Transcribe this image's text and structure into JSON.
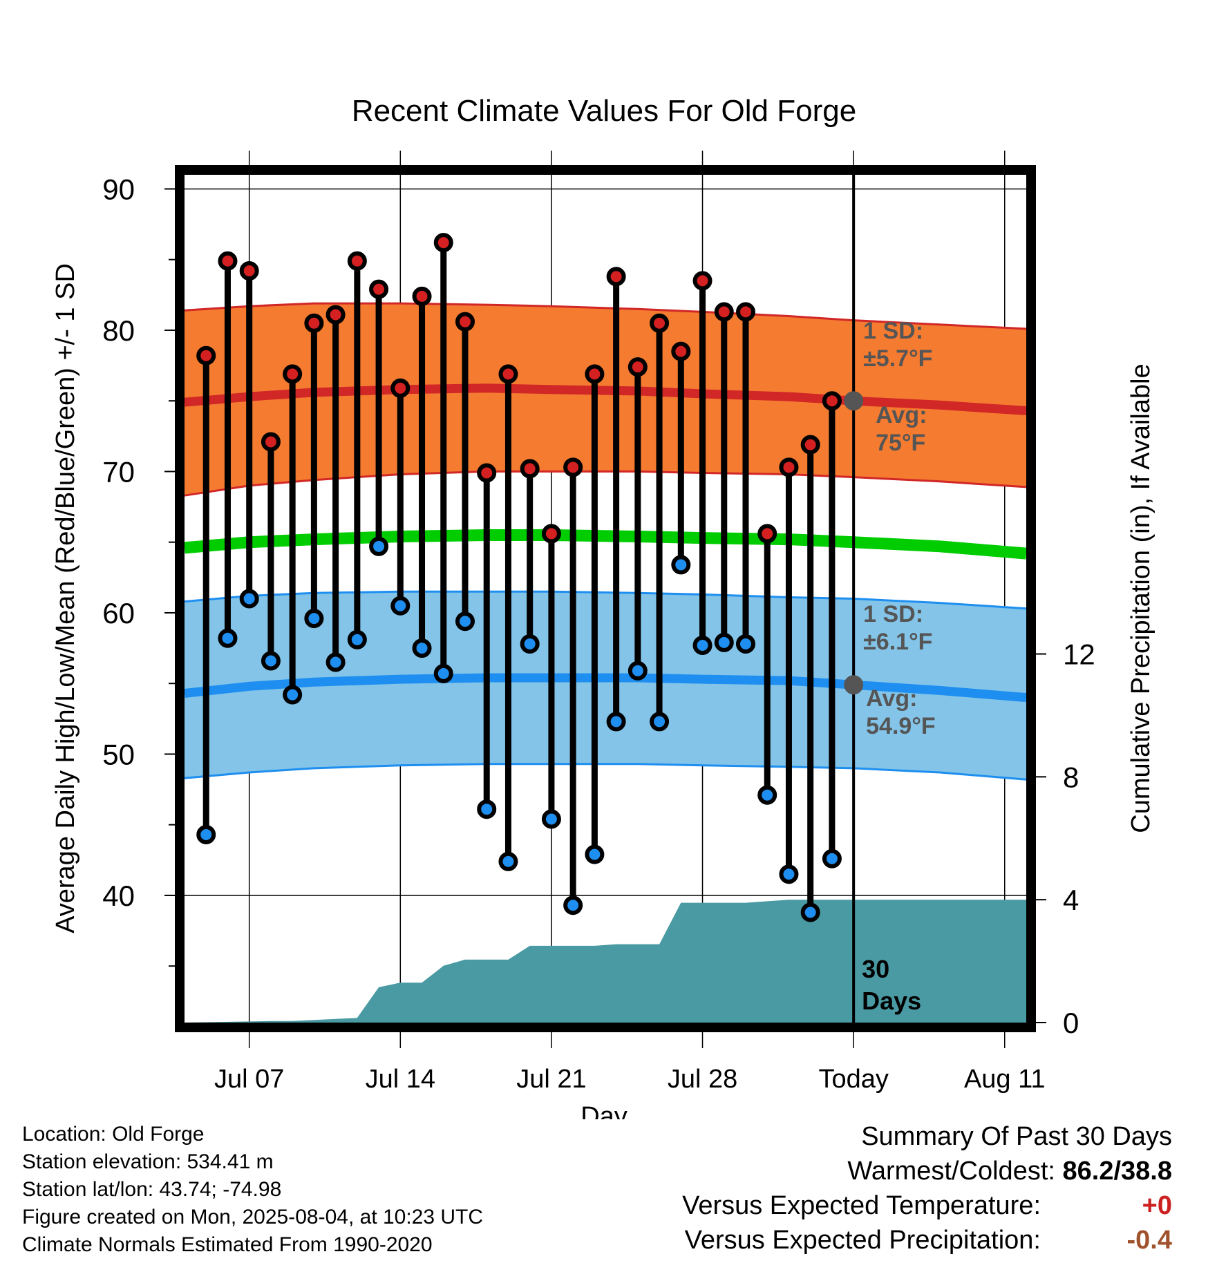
{
  "chart_data": {
    "type": "line",
    "title": "Recent Climate Values For Old Forge",
    "xlabel": "Day",
    "ylabel": "Average Daily High/Low/Mean (Red/Blue/Green) +/- 1 SD",
    "y2label": "Cumulative Precipitation (in), If Available",
    "x_ticks": [
      "Jul 07",
      "Jul 14",
      "Jul 21",
      "Jul 28",
      "Today",
      "Aug 11"
    ],
    "x_tick_days": [
      7,
      14,
      21,
      28,
      35,
      42
    ],
    "xlim_days": [
      4,
      43
    ],
    "ylim": [
      31,
      91
    ],
    "y_ticks": [
      40,
      50,
      60,
      70,
      80,
      90
    ],
    "y2lim": [
      0,
      27.6
    ],
    "y2_ticks": [
      0,
      4,
      8,
      12
    ],
    "today_day": 35,
    "today_label": [
      "30",
      "Days"
    ],
    "grid": true,
    "colors": {
      "high_band": "#f47b30",
      "high_line": "#d12727",
      "low_band": "#83c4e8",
      "low_line": "#1e8ff0",
      "mean_line": "#00cc00",
      "precip": "#4a9aa4",
      "high_marker": "#d42020",
      "low_marker": "#1e8ff0",
      "avg_marker": "#555555",
      "annotation": "#555555",
      "warm_value": "#cc2020",
      "precip_value": "#a0522d"
    },
    "normals": {
      "days": [
        4,
        7,
        10,
        14,
        18,
        21,
        25,
        28,
        32,
        35,
        39,
        43
      ],
      "high_avg": [
        74.9,
        75.3,
        75.6,
        75.8,
        75.9,
        75.8,
        75.7,
        75.5,
        75.3,
        75.0,
        74.7,
        74.3
      ],
      "high_upper": [
        81.4,
        81.7,
        81.9,
        81.9,
        81.8,
        81.7,
        81.5,
        81.3,
        81.0,
        80.7,
        80.4,
        80.1
      ],
      "high_lower": [
        68.3,
        69.0,
        69.4,
        69.8,
        70.0,
        70.0,
        70.0,
        69.9,
        69.8,
        69.6,
        69.3,
        68.9
      ],
      "mean": [
        64.6,
        65.0,
        65.2,
        65.4,
        65.5,
        65.5,
        65.4,
        65.3,
        65.2,
        65.0,
        64.7,
        64.2
      ],
      "low_avg": [
        54.3,
        54.8,
        55.1,
        55.3,
        55.4,
        55.4,
        55.4,
        55.3,
        55.2,
        54.9,
        54.5,
        54.0
      ],
      "low_upper": [
        60.8,
        61.2,
        61.4,
        61.5,
        61.5,
        61.5,
        61.4,
        61.3,
        61.1,
        61.0,
        60.7,
        60.3
      ],
      "low_lower": [
        48.3,
        48.7,
        49.0,
        49.2,
        49.3,
        49.3,
        49.3,
        49.2,
        49.1,
        49.0,
        48.7,
        48.2
      ]
    },
    "daily": {
      "days": [
        5,
        6,
        7,
        8,
        9,
        10,
        11,
        12,
        13,
        14,
        15,
        16,
        17,
        18,
        19,
        20,
        21,
        22,
        23,
        24,
        25,
        26,
        27,
        28,
        29,
        30,
        31,
        32,
        33,
        34
      ],
      "highs": [
        78.2,
        84.9,
        84.2,
        72.1,
        76.9,
        80.5,
        81.1,
        84.9,
        82.9,
        75.9,
        82.4,
        86.2,
        80.6,
        69.9,
        76.9,
        70.2,
        65.6,
        70.3,
        76.9,
        83.8,
        77.4,
        80.5,
        78.5,
        83.5,
        81.3,
        81.3,
        65.6,
        70.3,
        71.9,
        75.0
      ],
      "lows": [
        44.3,
        58.2,
        61.0,
        56.6,
        54.2,
        59.6,
        56.5,
        58.1,
        64.7,
        60.5,
        57.5,
        55.7,
        59.4,
        46.1,
        42.4,
        57.8,
        45.4,
        39.3,
        42.9,
        52.3,
        55.9,
        52.3,
        63.4,
        57.7,
        57.9,
        57.8,
        47.1,
        41.5,
        38.8,
        42.6
      ]
    },
    "precip": {
      "days": [
        4,
        8,
        9,
        12,
        13,
        14,
        15,
        16,
        17,
        18,
        19,
        20,
        21,
        22,
        23,
        24,
        25,
        26,
        27,
        28,
        29,
        30,
        31,
        32,
        35,
        43
      ],
      "cumulative": [
        0.0,
        0.05,
        0.05,
        0.15,
        1.15,
        1.3,
        1.3,
        1.85,
        2.05,
        2.05,
        2.05,
        2.5,
        2.5,
        2.5,
        2.5,
        2.55,
        2.55,
        2.55,
        3.9,
        3.9,
        3.9,
        3.9,
        3.95,
        4.0,
        4.0,
        4.0
      ]
    },
    "annotations": {
      "high_sd": [
        "1 SD:",
        "±5.7°F"
      ],
      "high_avg": [
        "Avg:",
        "75°F"
      ],
      "low_sd": [
        "1 SD:",
        "±6.1°F"
      ],
      "low_avg": [
        "Avg:",
        "54.9°F"
      ],
      "high_avg_value": 75.0,
      "low_avg_value": 54.9
    }
  },
  "footer": {
    "location": "Location: Old Forge",
    "elevation": "Station elevation: 534.41 m",
    "latlon": "Station lat/lon: 43.74; -74.98",
    "created": "Figure created on Mon, 2025-08-04, at 10:23 UTC",
    "normals": "Climate Normals Estimated From 1990-2020"
  },
  "summary": {
    "title": "Summary Of Past 30 Days",
    "warmest_label": "Warmest/Coldest:",
    "warmest_value": "86.2/38.8",
    "temp_label": "Versus Expected Temperature:",
    "temp_value": "+0",
    "precip_label": "Versus Expected Precipitation:",
    "precip_value": "-0.4"
  }
}
